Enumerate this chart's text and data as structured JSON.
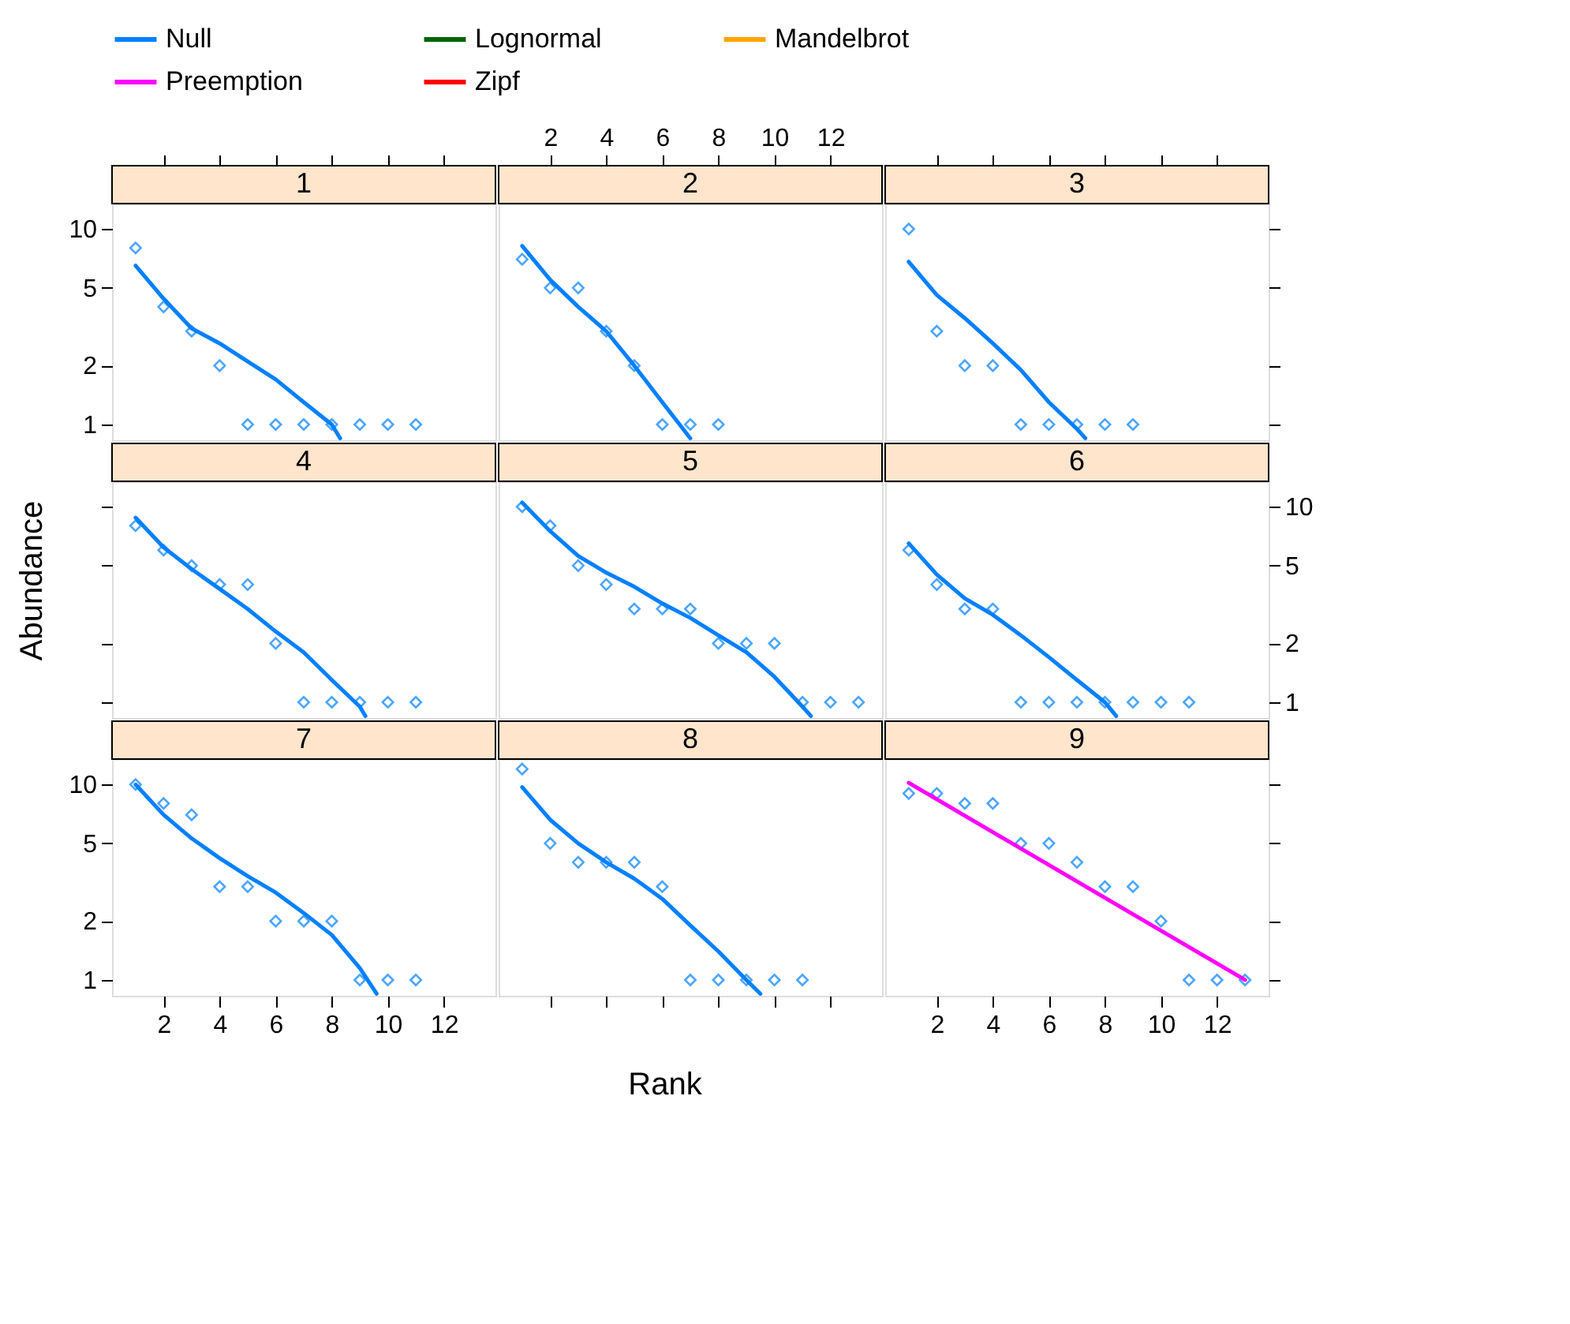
{
  "chart_data": [
    {
      "type": "scatter",
      "title": "1",
      "log": true,
      "xlim": [
        0.16,
        13.84
      ],
      "xticks": [
        2,
        4,
        6,
        8,
        10,
        12
      ],
      "ylim": [
        0.83,
        13.5
      ],
      "yticks": [
        1,
        2,
        5,
        10
      ],
      "tick_labels": "y",
      "x": [
        1,
        2,
        3,
        4,
        5,
        6,
        7,
        8,
        9,
        10,
        11
      ],
      "series": [
        {
          "color": "#0080ff",
          "marker": "diamond",
          "values": [
            8,
            4,
            3,
            2,
            1,
            1,
            1,
            1,
            1,
            1,
            1
          ]
        },
        {
          "type": "line",
          "name": "Null",
          "color": "#0080ff",
          "x": [
            1,
            2,
            3,
            4,
            5,
            6,
            7,
            8,
            8.3
          ],
          "values": [
            6.5,
            4.4,
            3.1,
            2.6,
            2.1,
            1.7,
            1.3,
            1.0,
            0.85
          ]
        }
      ]
    },
    {
      "type": "scatter",
      "title": "2",
      "log": true,
      "xlim": [
        0.16,
        13.84
      ],
      "xticks": [
        2,
        4,
        6,
        8,
        10,
        12
      ],
      "ylim": [
        0.83,
        13.5
      ],
      "tick_labels": "x",
      "x": [
        1,
        2,
        3,
        4,
        5,
        6,
        7,
        8
      ],
      "series": [
        {
          "color": "#0080ff",
          "marker": "diamond",
          "values": [
            7,
            5,
            5,
            3,
            2,
            1,
            1,
            1
          ]
        },
        {
          "type": "line",
          "name": "Null",
          "color": "#0080ff",
          "x": [
            1,
            2,
            3,
            4,
            5,
            6,
            7
          ],
          "values": [
            8.2,
            5.5,
            4.0,
            3.0,
            2.0,
            1.3,
            0.85
          ]
        }
      ]
    },
    {
      "type": "scatter",
      "title": "3",
      "log": true,
      "xlim": [
        0.16,
        13.84
      ],
      "xticks": [
        2,
        4,
        6,
        8,
        10,
        12
      ],
      "ylim": [
        0.83,
        13.5
      ],
      "yticks": [
        1,
        2,
        5,
        10
      ],
      "tick_labels": false,
      "x": [
        1,
        2,
        3,
        4,
        5,
        6,
        7,
        8,
        9
      ],
      "series": [
        {
          "color": "#0080ff",
          "marker": "diamond",
          "values": [
            10,
            3,
            2,
            2,
            1,
            1,
            1,
            1,
            1
          ]
        },
        {
          "type": "line",
          "name": "Null",
          "color": "#0080ff",
          "x": [
            1,
            2,
            3,
            4,
            5,
            6,
            7,
            7.3
          ],
          "values": [
            6.8,
            4.6,
            3.5,
            2.6,
            1.9,
            1.3,
            0.95,
            0.85
          ]
        }
      ]
    },
    {
      "type": "scatter",
      "title": "4",
      "log": true,
      "xlim": [
        0.16,
        13.84
      ],
      "ylim": [
        0.83,
        13.5
      ],
      "yticks": [
        1,
        2,
        5,
        10
      ],
      "tick_labels": false,
      "x": [
        1,
        2,
        3,
        4,
        5,
        6,
        7,
        8,
        9,
        10,
        11
      ],
      "series": [
        {
          "color": "#0080ff",
          "marker": "diamond",
          "values": [
            8,
            6,
            5,
            4,
            4,
            2,
            1,
            1,
            1,
            1,
            1
          ]
        },
        {
          "type": "line",
          "name": "Null",
          "color": "#0080ff",
          "x": [
            1,
            2,
            3,
            4,
            5,
            6,
            7,
            8,
            9,
            9.2
          ],
          "values": [
            8.8,
            6.2,
            4.8,
            3.8,
            3.0,
            2.3,
            1.8,
            1.3,
            0.95,
            0.85
          ]
        }
      ]
    },
    {
      "type": "scatter",
      "title": "5",
      "log": true,
      "xlim": [
        0.16,
        13.84
      ],
      "ylim": [
        0.83,
        13.5
      ],
      "tick_labels": false,
      "x": [
        1,
        2,
        3,
        4,
        5,
        6,
        7,
        8,
        9,
        10,
        11,
        12,
        13
      ],
      "series": [
        {
          "color": "#0080ff",
          "marker": "diamond",
          "values": [
            10,
            8,
            5,
            4,
            3,
            3,
            3,
            2,
            2,
            2,
            1,
            1,
            1
          ]
        },
        {
          "type": "line",
          "name": "Null",
          "color": "#0080ff",
          "x": [
            1,
            2,
            3,
            4,
            5,
            6,
            7,
            8,
            9,
            10,
            11,
            11.3
          ],
          "values": [
            10.5,
            7.5,
            5.6,
            4.6,
            3.9,
            3.2,
            2.7,
            2.2,
            1.8,
            1.35,
            0.95,
            0.85
          ]
        }
      ]
    },
    {
      "type": "scatter",
      "title": "6",
      "log": true,
      "xlim": [
        0.16,
        13.84
      ],
      "ylim": [
        0.83,
        13.5
      ],
      "yticks": [
        1,
        2,
        5,
        10
      ],
      "tick_labels": "y",
      "x": [
        1,
        2,
        3,
        4,
        5,
        6,
        7,
        8,
        9,
        10,
        11
      ],
      "series": [
        {
          "color": "#0080ff",
          "marker": "diamond",
          "values": [
            6,
            4,
            3,
            3,
            1,
            1,
            1,
            1,
            1,
            1,
            1
          ]
        },
        {
          "type": "line",
          "name": "Null",
          "color": "#0080ff",
          "x": [
            1,
            2,
            3,
            4,
            5,
            6,
            7,
            8,
            8.4
          ],
          "values": [
            6.5,
            4.5,
            3.4,
            2.8,
            2.2,
            1.7,
            1.3,
            1.0,
            0.85
          ]
        }
      ]
    },
    {
      "type": "scatter",
      "title": "7",
      "log": true,
      "ylabel": "Abundance",
      "xlim": [
        0.16,
        13.84
      ],
      "xticks": [
        2,
        4,
        6,
        8,
        10,
        12
      ],
      "ylim": [
        0.83,
        13.5
      ],
      "yticks": [
        1,
        2,
        5,
        10
      ],
      "x": [
        1,
        2,
        3,
        4,
        5,
        6,
        7,
        8,
        9,
        10,
        11
      ],
      "series": [
        {
          "color": "#0080ff",
          "marker": "diamond",
          "values": [
            10,
            8,
            7,
            3,
            3,
            2,
            2,
            2,
            1,
            1,
            1
          ]
        },
        {
          "type": "line",
          "name": "Null",
          "color": "#0080ff",
          "x": [
            1,
            2,
            3,
            4,
            5,
            6,
            7,
            8,
            9,
            9.6
          ],
          "values": [
            10,
            7,
            5.3,
            4.2,
            3.4,
            2.8,
            2.2,
            1.7,
            1.15,
            0.85
          ]
        }
      ]
    },
    {
      "type": "scatter",
      "title": "8",
      "log": true,
      "xlabel": "Rank",
      "xlim": [
        0.16,
        13.84
      ],
      "xticks": [
        2,
        4,
        6,
        8,
        10,
        12
      ],
      "ylim": [
        0.83,
        13.5
      ],
      "tick_labels": false,
      "x": [
        1,
        2,
        3,
        4,
        5,
        6,
        7,
        8,
        9,
        10,
        11
      ],
      "series": [
        {
          "color": "#0080ff",
          "marker": "diamond",
          "values": [
            12,
            5,
            4,
            4,
            4,
            3,
            1,
            1,
            1,
            1,
            1
          ]
        },
        {
          "type": "line",
          "name": "Null",
          "color": "#0080ff",
          "x": [
            1,
            2,
            3,
            4,
            5,
            6,
            7,
            8,
            9,
            9.5
          ],
          "values": [
            9.7,
            6.6,
            5.0,
            4.0,
            3.3,
            2.6,
            1.9,
            1.4,
            1.0,
            0.85
          ]
        }
      ]
    },
    {
      "type": "scatter",
      "title": "9",
      "log": true,
      "legend": "top",
      "xlim": [
        0.16,
        13.84
      ],
      "xticks": [
        2,
        4,
        6,
        8,
        10,
        12
      ],
      "ylim": [
        0.83,
        13.5
      ],
      "yticks": [
        1,
        2,
        5,
        10
      ],
      "tick_labels": "x",
      "x": [
        1,
        2,
        3,
        4,
        5,
        6,
        7,
        8,
        9,
        10,
        11,
        12,
        13
      ],
      "series": [
        {
          "color": "#0080ff",
          "marker": "diamond",
          "values": [
            9,
            9,
            8,
            8,
            5,
            5,
            4,
            3,
            3,
            2,
            1,
            1,
            1
          ]
        },
        {
          "type": "line",
          "name": "Lognormal",
          "color": "#006400",
          "values": [
            null,
            null,
            null,
            null,
            null,
            null,
            null,
            null,
            null,
            null,
            null,
            null,
            null
          ]
        },
        {
          "type": "line",
          "name": "Mandelbrot",
          "color": "#ffa500",
          "values": [
            null,
            null,
            null,
            null,
            null,
            null,
            null,
            null,
            null,
            null,
            null,
            null,
            null
          ]
        },
        {
          "type": "line",
          "name": "Preemption",
          "color": "#ff00ff",
          "x": [
            1,
            13
          ],
          "values": [
            10.2,
            1.0
          ]
        },
        {
          "type": "line",
          "name": "Zipf",
          "color": "#ff0000",
          "values": [
            null,
            null,
            null,
            null,
            null,
            null,
            null,
            null,
            null,
            null,
            null,
            null,
            null
          ]
        }
      ]
    }
  ]
}
